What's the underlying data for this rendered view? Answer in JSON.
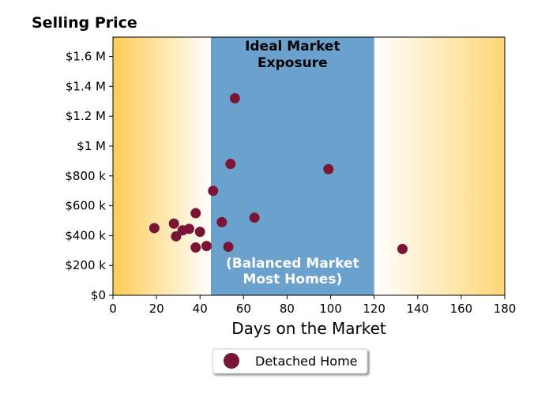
{
  "chart_data": {
    "type": "scatter",
    "title": "Selling Price",
    "xlabel": "Days on the Market",
    "ylabel": "",
    "xlim": [
      0,
      180
    ],
    "ylim": [
      0,
      1730000
    ],
    "x_ticks": [
      0,
      20,
      40,
      60,
      80,
      100,
      120,
      140,
      160,
      180
    ],
    "x_tick_labels": [
      "0",
      "20",
      "40",
      "60",
      "80",
      "100",
      "120",
      "140",
      "160",
      "180"
    ],
    "y_ticks": [
      0,
      200000,
      400000,
      600000,
      800000,
      1000000,
      1200000,
      1400000,
      1600000
    ],
    "y_tick_labels": [
      "$0",
      "$200 k",
      "$400 k",
      "$600 k",
      "$800 k",
      "$1 M",
      "$1.2 M",
      "$1.4 M",
      "$1.6 M"
    ],
    "grid": false,
    "band": {
      "x_start": 45,
      "x_end": 120,
      "color": "#6aa1cd"
    },
    "outer_gradient_color": "#ffcc55",
    "annotations": {
      "top_line1": "Ideal Market",
      "top_line2": "Exposure",
      "bottom_line1": "(Balanced Market",
      "bottom_line2": "Most Homes)"
    },
    "legend": {
      "placement": "bottom-center",
      "label": "Detached Home"
    },
    "series": [
      {
        "name": "Detached Home",
        "color": "#7a1535",
        "points": [
          {
            "x": 19,
            "y": 450000
          },
          {
            "x": 28,
            "y": 480000
          },
          {
            "x": 29,
            "y": 395000
          },
          {
            "x": 32,
            "y": 435000
          },
          {
            "x": 35,
            "y": 445000
          },
          {
            "x": 38,
            "y": 550000
          },
          {
            "x": 38,
            "y": 320000
          },
          {
            "x": 40,
            "y": 425000
          },
          {
            "x": 43,
            "y": 330000
          },
          {
            "x": 46,
            "y": 700000
          },
          {
            "x": 50,
            "y": 490000
          },
          {
            "x": 53,
            "y": 325000
          },
          {
            "x": 54,
            "y": 880000
          },
          {
            "x": 56,
            "y": 1320000
          },
          {
            "x": 65,
            "y": 520000
          },
          {
            "x": 99,
            "y": 845000
          },
          {
            "x": 133,
            "y": 310000
          }
        ]
      }
    ]
  }
}
